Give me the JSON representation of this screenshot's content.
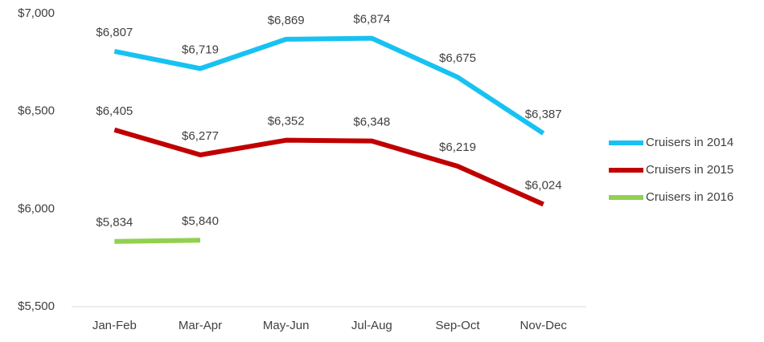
{
  "chart_data": {
    "type": "line",
    "categories": [
      "Jan-Feb",
      "Mar-Apr",
      "May-Jun",
      "Jul-Aug",
      "Sep-Oct",
      "Nov-Dec"
    ],
    "series": [
      {
        "name": "Cruisers in 2014",
        "color": "#17c2f2",
        "values": [
          6807,
          6719,
          6869,
          6874,
          6675,
          6387
        ],
        "value_labels": [
          "$6,807",
          "$6,719",
          "$6,869",
          "$6,874",
          "$6,675",
          "$6,387"
        ]
      },
      {
        "name": "Cruisers in 2015",
        "color": "#c00000",
        "values": [
          6405,
          6277,
          6352,
          6348,
          6219,
          6024
        ],
        "value_labels": [
          "$6,405",
          "$6,277",
          "$6,352",
          "$6,348",
          "$6,219",
          "$6,024"
        ]
      },
      {
        "name": "Cruisers in 2016",
        "color": "#92d050",
        "values": [
          5834,
          5840,
          null,
          null,
          null,
          null
        ],
        "value_labels": [
          "$5,834",
          "$5,840",
          null,
          null,
          null,
          null
        ]
      }
    ],
    "ylim": [
      5500,
      7000
    ],
    "yticks": [
      {
        "value": 5500,
        "label": "$5,500"
      },
      {
        "value": 6000,
        "label": "$6,000"
      },
      {
        "value": 6500,
        "label": "$6,500"
      },
      {
        "value": 7000,
        "label": "$7,000"
      }
    ],
    "grid": false,
    "legend": "right"
  }
}
